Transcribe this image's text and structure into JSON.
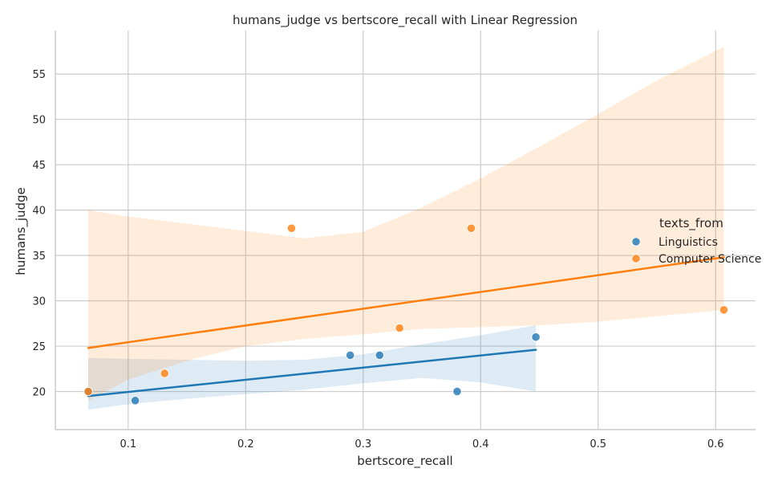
{
  "chart_data": {
    "type": "scatter",
    "title": "humans_judge vs bertscore_recall with Linear Regression",
    "xlabel": "bertscore_recall",
    "ylabel": "humans_judge",
    "xlim": [
      0.038,
      0.634
    ],
    "ylim": [
      15.8,
      59.8
    ],
    "x_ticks": [
      0.1,
      0.2,
      0.3,
      0.4,
      0.5,
      0.6
    ],
    "y_ticks": [
      20,
      25,
      30,
      35,
      40,
      45,
      50,
      55
    ],
    "grid": true,
    "legend": {
      "title": "texts_from",
      "placement": "right"
    },
    "series": [
      {
        "name": "Linguistics",
        "color": "#1f77b4",
        "points": [
          {
            "x": 0.066,
            "y": 20
          },
          {
            "x": 0.106,
            "y": 19
          },
          {
            "x": 0.289,
            "y": 24
          },
          {
            "x": 0.314,
            "y": 24
          },
          {
            "x": 0.38,
            "y": 20
          },
          {
            "x": 0.447,
            "y": 26
          }
        ],
        "regression": {
          "x": [
            0.066,
            0.447
          ],
          "y": [
            19.5,
            24.6
          ]
        },
        "confidence_band": {
          "x": [
            0.066,
            0.1,
            0.15,
            0.2,
            0.25,
            0.3,
            0.35,
            0.4,
            0.447
          ],
          "upper": [
            23.7,
            23.6,
            23.5,
            23.4,
            23.5,
            24.1,
            25.2,
            26.2,
            27.3
          ],
          "lower": [
            18.0,
            18.6,
            19.2,
            19.7,
            20.2,
            20.9,
            21.5,
            21.0,
            20.0
          ]
        }
      },
      {
        "name": "Computer Science",
        "color": "#ff7f0e",
        "points": [
          {
            "x": 0.066,
            "y": 20
          },
          {
            "x": 0.131,
            "y": 22
          },
          {
            "x": 0.239,
            "y": 38
          },
          {
            "x": 0.331,
            "y": 27
          },
          {
            "x": 0.392,
            "y": 38
          },
          {
            "x": 0.607,
            "y": 29
          }
        ],
        "regression": {
          "x": [
            0.066,
            0.607
          ],
          "y": [
            24.8,
            34.8
          ]
        },
        "confidence_band": {
          "x": [
            0.066,
            0.1,
            0.15,
            0.2,
            0.25,
            0.3,
            0.35,
            0.4,
            0.45,
            0.5,
            0.55,
            0.607
          ],
          "upper": [
            40.0,
            39.3,
            38.5,
            37.7,
            36.9,
            37.6,
            40.3,
            43.5,
            47.0,
            50.6,
            54.3,
            58.0
          ],
          "lower": [
            19.0,
            21.3,
            23.4,
            25.0,
            25.8,
            26.3,
            26.9,
            27.1,
            27.3,
            27.7,
            28.3,
            29.0
          ]
        }
      }
    ]
  }
}
